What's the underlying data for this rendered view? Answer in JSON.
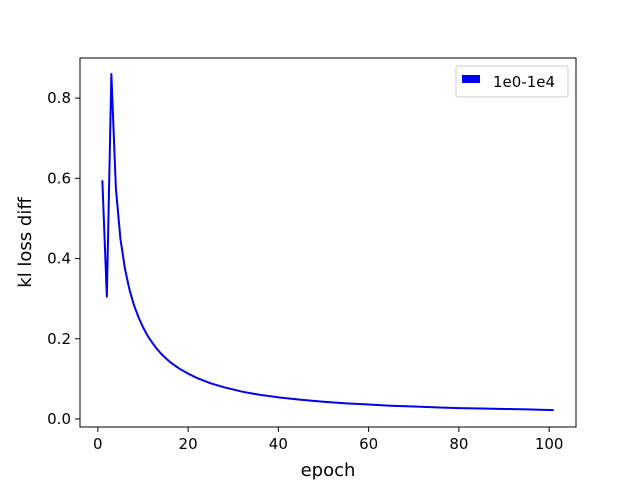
{
  "chart_data": {
    "type": "line",
    "title": "",
    "xlabel": "epoch",
    "ylabel": "kl loss diff",
    "xlim": [
      -3.95,
      105.95
    ],
    "ylim": [
      -0.02,
      0.9
    ],
    "xticks": [
      0,
      20,
      40,
      60,
      80,
      100
    ],
    "yticks": [
      0.0,
      0.2,
      0.4,
      0.6,
      0.8
    ],
    "legend_position": "top-right",
    "grid": false,
    "series": [
      {
        "name": "1e0-1e4",
        "color": "#0000ee",
        "x": [
          1,
          2,
          3,
          4,
          5,
          6,
          7,
          8,
          9,
          10,
          11,
          12,
          13,
          14,
          15,
          16,
          18,
          20,
          22,
          25,
          28,
          32,
          36,
          40,
          45,
          50,
          55,
          60,
          65,
          70,
          75,
          80,
          85,
          90,
          95,
          101
        ],
        "y": [
          0.595,
          0.305,
          0.86,
          0.575,
          0.45,
          0.375,
          0.323,
          0.284,
          0.254,
          0.229,
          0.208,
          0.191,
          0.176,
          0.163,
          0.152,
          0.142,
          0.126,
          0.113,
          0.102,
          0.089,
          0.079,
          0.068,
          0.06,
          0.054,
          0.048,
          0.043,
          0.039,
          0.036,
          0.033,
          0.031,
          0.029,
          0.027,
          0.026,
          0.025,
          0.024,
          0.022
        ]
      }
    ]
  }
}
